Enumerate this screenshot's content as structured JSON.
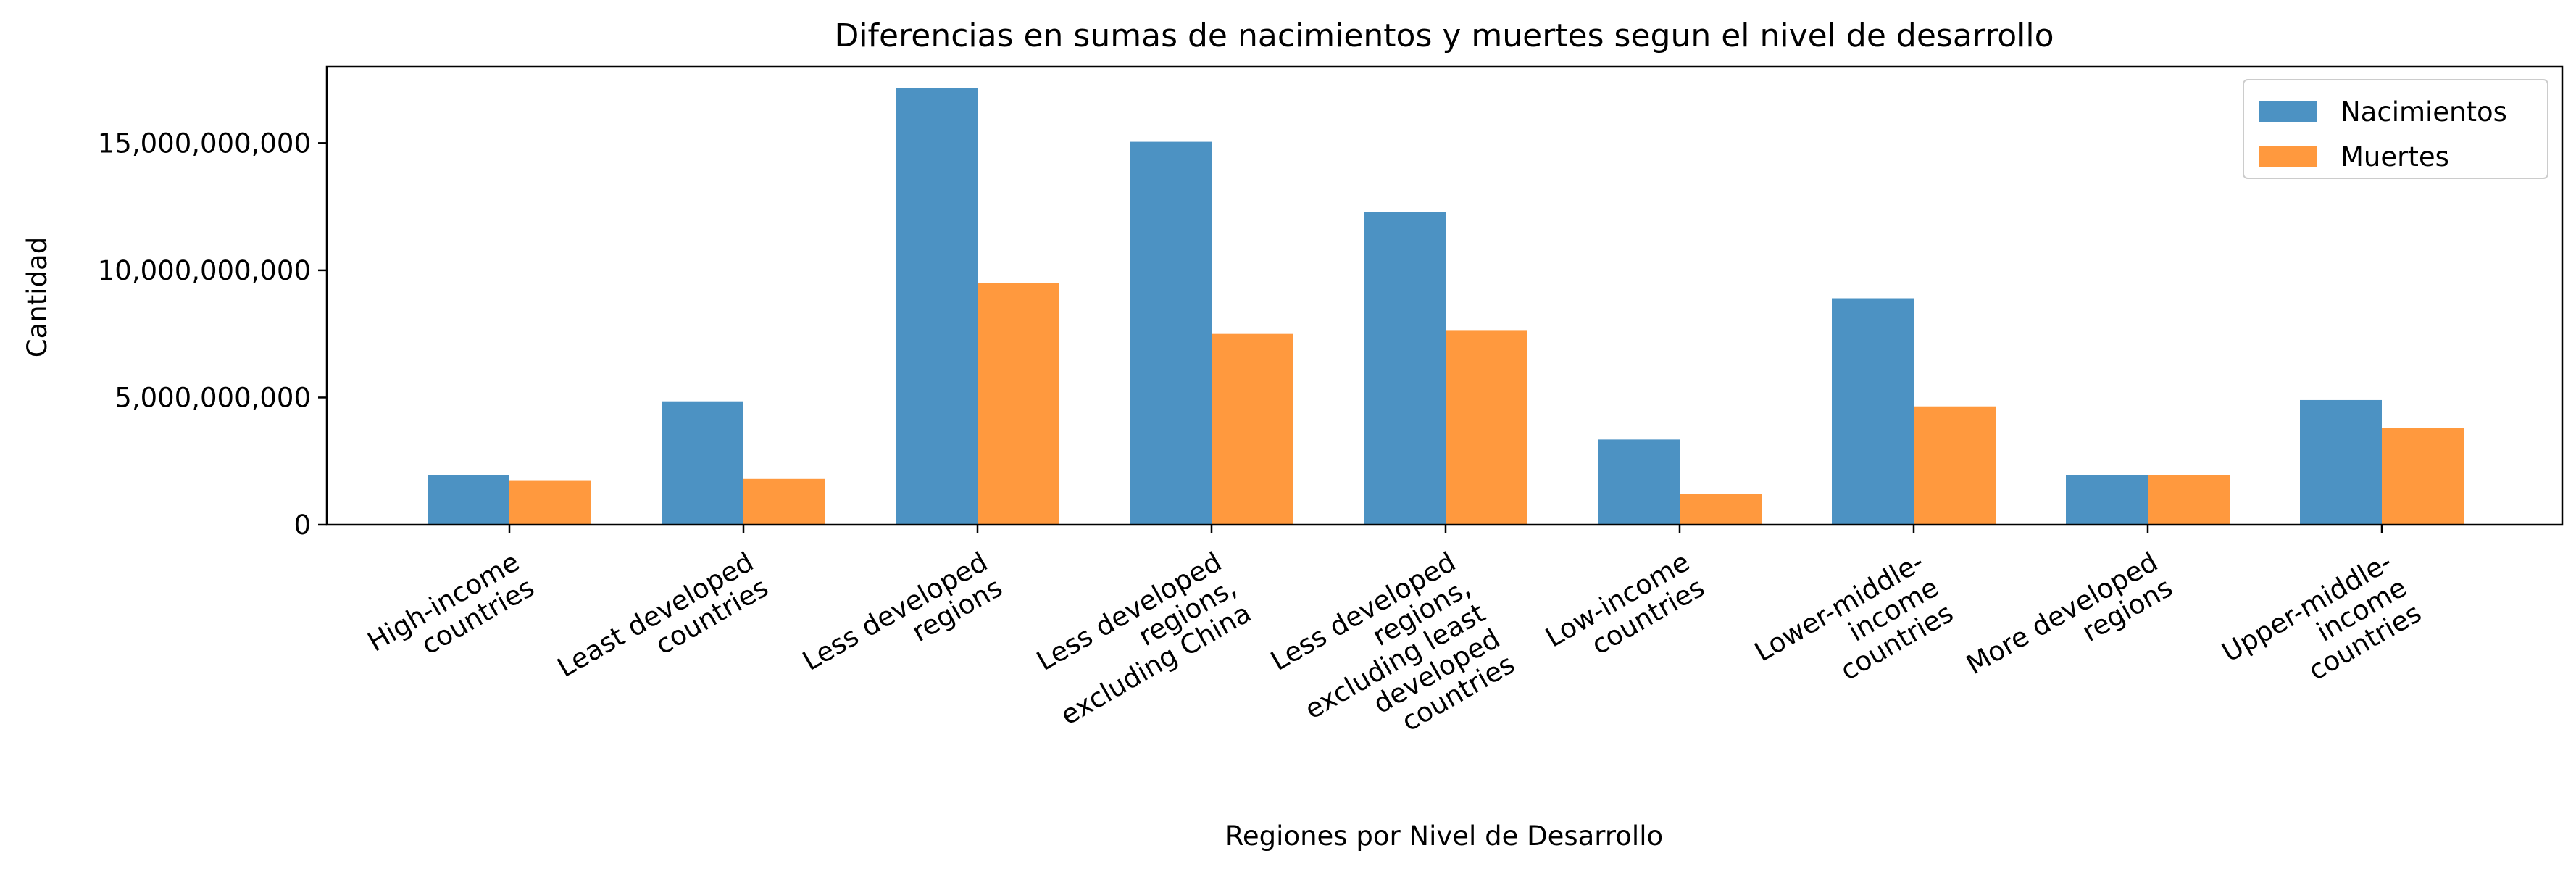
{
  "chart_data": {
    "type": "bar",
    "title": "Diferencias en sumas de nacimientos y muertes segun el nivel de desarrollo",
    "xlabel": "Regiones por Nivel de Desarrollo",
    "ylabel": "Cantidad",
    "ylim": [
      0,
      18000000000
    ],
    "yticks": [
      0,
      5000000000,
      10000000000,
      15000000000
    ],
    "ytick_labels": [
      "0",
      "5,000,000,000",
      "10,000,000,000",
      "15,000,000,000"
    ],
    "grid": false,
    "legend_position": "top-right",
    "categories": [
      "High-income\ncountries",
      "Least developed\ncountries",
      "Less developed\nregions",
      "Less developed\nregions,\nexcluding China",
      "Less developed\nregions,\nexcluding least\ndeveloped\ncountries",
      "Low-income\ncountries",
      "Lower-middle-\nincome\ncountries",
      "More developed\nregions",
      "Upper-middle-\nincome\ncountries"
    ],
    "series": [
      {
        "name": "Nacimientos",
        "color": "#4c92c3",
        "values": [
          1950000000,
          4850000000,
          17150000000,
          15050000000,
          12300000000,
          3350000000,
          8900000000,
          1950000000,
          4900000000
        ]
      },
      {
        "name": "Muertes",
        "color": "#ff993e",
        "values": [
          1750000000,
          1800000000,
          9500000000,
          7500000000,
          7650000000,
          1200000000,
          4650000000,
          1950000000,
          3800000000
        ]
      }
    ]
  }
}
